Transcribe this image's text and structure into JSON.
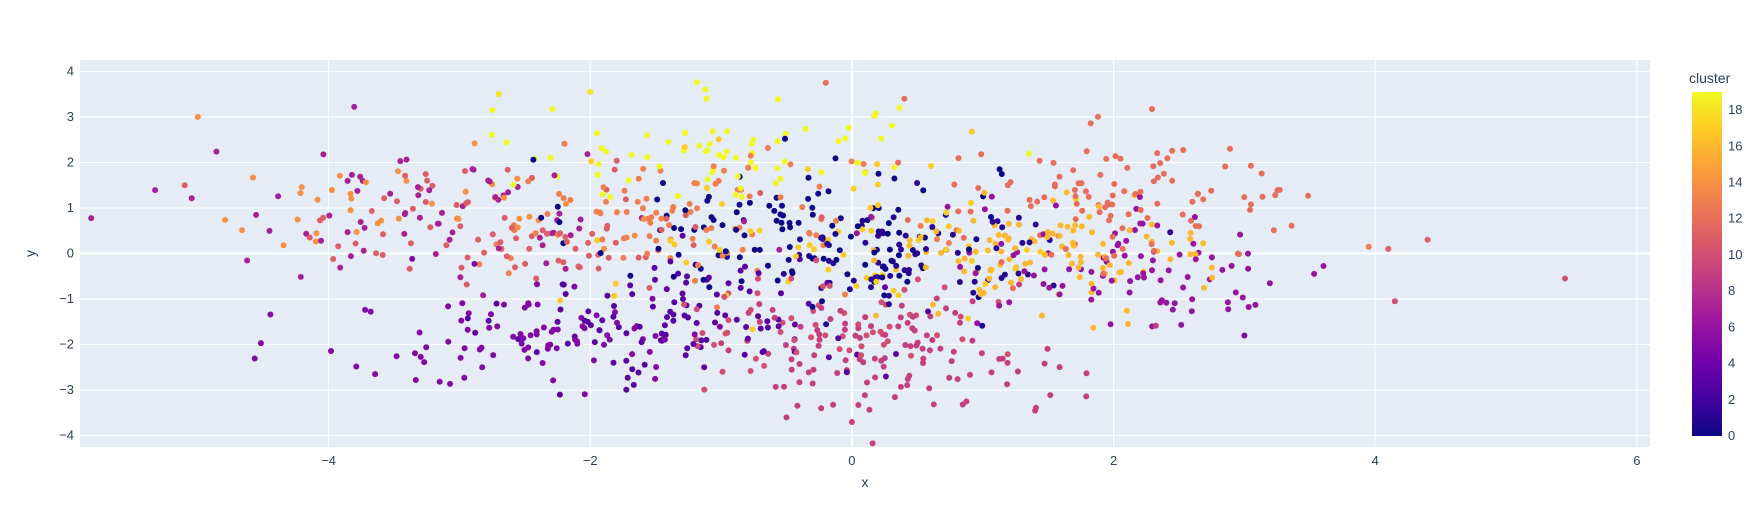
{
  "chart_data": {
    "type": "scatter",
    "title": "",
    "xlabel": "x",
    "ylabel": "y",
    "xlim": [
      -5.9,
      6.1
    ],
    "ylim": [
      -4.25,
      4.25
    ],
    "x_ticks": [
      -4,
      -2,
      0,
      2,
      4,
      6
    ],
    "y_ticks": [
      -4,
      -3,
      -2,
      -1,
      0,
      1,
      2,
      3,
      4
    ],
    "grid": true,
    "colorbar": {
      "title": "cluster",
      "range": [
        0,
        19
      ],
      "ticks": [
        0,
        2,
        4,
        6,
        8,
        10,
        12,
        14,
        16,
        18
      ],
      "colorscale": [
        "#0d0887",
        "#46039f",
        "#7201a8",
        "#9c179e",
        "#bd3786",
        "#d8576b",
        "#ed7953",
        "#fb9f3a",
        "#fdca26",
        "#f0f921"
      ]
    },
    "colors": {
      "plot_bg": "#e5ecf6",
      "grid": "#ffffff",
      "text": "#2a3f5f"
    },
    "marker_size": 5,
    "clusters": [
      {
        "cluster": 0,
        "center": [
          -0.5,
          0.5
        ],
        "spread": [
          0.8,
          0.8
        ],
        "count": 120
      },
      {
        "cluster": 1,
        "center": [
          0.5,
          0.0
        ],
        "spread": [
          0.6,
          0.6
        ],
        "count": 70
      },
      {
        "cluster": 3,
        "center": [
          -1.2,
          -1.5
        ],
        "spread": [
          0.7,
          0.7
        ],
        "count": 110
      },
      {
        "cluster": 5,
        "center": [
          -2.5,
          -1.8
        ],
        "spread": [
          0.8,
          0.6
        ],
        "count": 90
      },
      {
        "cluster": 6,
        "center": [
          2.2,
          -0.3
        ],
        "spread": [
          0.8,
          0.7
        ],
        "count": 90
      },
      {
        "cluster": 7,
        "center": [
          -3.2,
          0.8
        ],
        "spread": [
          0.9,
          0.8
        ],
        "count": 70
      },
      {
        "cluster": 9,
        "center": [
          0.3,
          -2.2
        ],
        "spread": [
          0.7,
          0.6
        ],
        "count": 110
      },
      {
        "cluster": 10,
        "center": [
          -0.2,
          -1.5
        ],
        "spread": [
          0.6,
          0.6
        ],
        "count": 60
      },
      {
        "cluster": 11,
        "center": [
          -2.5,
          0.6
        ],
        "spread": [
          0.8,
          0.7
        ],
        "count": 80
      },
      {
        "cluster": 12,
        "center": [
          2.0,
          1.2
        ],
        "spread": [
          0.8,
          0.7
        ],
        "count": 110
      },
      {
        "cluster": 13,
        "center": [
          -1.3,
          0.7
        ],
        "spread": [
          0.7,
          0.7
        ],
        "count": 90
      },
      {
        "cluster": 14,
        "center": [
          -3.5,
          1.0
        ],
        "spread": [
          0.9,
          0.6
        ],
        "count": 40
      },
      {
        "cluster": 16,
        "center": [
          1.5,
          0.0
        ],
        "spread": [
          0.6,
          0.6
        ],
        "count": 110
      },
      {
        "cluster": 17,
        "center": [
          0.0,
          0.5
        ],
        "spread": [
          0.9,
          0.9
        ],
        "count": 60
      },
      {
        "cluster": 19,
        "center": [
          -1.0,
          2.2
        ],
        "spread": [
          0.9,
          0.6
        ],
        "count": 70
      }
    ],
    "outliers": [
      {
        "x": -5.0,
        "y": 3.0,
        "cluster": 14
      },
      {
        "x": -5.1,
        "y": 1.5,
        "cluster": 11
      },
      {
        "x": 5.45,
        "y": -0.55,
        "cluster": 10
      },
      {
        "x": 4.15,
        "y": -1.05,
        "cluster": 10
      },
      {
        "x": 4.4,
        "y": 0.3,
        "cluster": 11
      },
      {
        "x": 3.95,
        "y": 0.15,
        "cluster": 13
      },
      {
        "x": 4.1,
        "y": 0.1,
        "cluster": 11
      },
      {
        "x": -0.2,
        "y": 3.75,
        "cluster": 12
      },
      {
        "x": 0.4,
        "y": 3.4,
        "cluster": 12
      },
      {
        "x": -2.7,
        "y": 3.5,
        "cluster": 18
      },
      {
        "x": -2.0,
        "y": 3.55,
        "cluster": 18
      },
      {
        "x": 0.0,
        "y": -3.7,
        "cluster": 9
      },
      {
        "x": -0.5,
        "y": -3.6,
        "cluster": 9
      },
      {
        "x": 1.4,
        "y": -3.45,
        "cluster": 9
      },
      {
        "x": 3.0,
        "y": -1.8,
        "cluster": 5
      }
    ]
  }
}
